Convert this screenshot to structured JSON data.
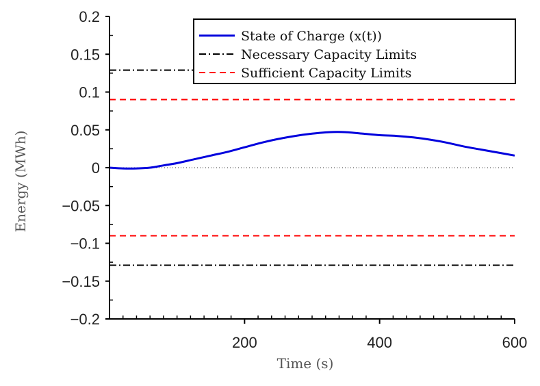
{
  "chart_data": {
    "type": "line",
    "title": "",
    "xlabel": "Time (s)",
    "ylabel": "Energy (MWh)",
    "xlim": [
      0,
      600
    ],
    "ylim": [
      -0.2,
      0.2
    ],
    "x_ticks": [
      200,
      400,
      600
    ],
    "x_tick_labels": [
      "200",
      "400",
      "600"
    ],
    "y_ticks": [
      0.2,
      0.15,
      0.1,
      0.05,
      0,
      -0.05,
      -0.1,
      -0.15,
      -0.2
    ],
    "y_tick_labels": [
      "0.2",
      "0.15",
      "0.1",
      "0.05",
      "0",
      "−0.05",
      "−0.1",
      "−0.15",
      "−0.2"
    ],
    "grid": false,
    "legend_position": "top-right",
    "zero_reference_line": true,
    "series": [
      {
        "name": "State of Charge (x(t))",
        "color": "#0000dd",
        "style": "solid",
        "x": [
          0,
          20,
          40,
          60,
          80,
          100,
          125,
          150,
          175,
          200,
          225,
          250,
          275,
          300,
          325,
          350,
          375,
          400,
          425,
          450,
          475,
          500,
          525,
          550,
          575,
          600
        ],
        "y": [
          0.0,
          -0.001,
          -0.001,
          0.0,
          0.003,
          0.006,
          0.011,
          0.016,
          0.021,
          0.027,
          0.033,
          0.038,
          0.042,
          0.045,
          0.047,
          0.047,
          0.045,
          0.043,
          0.042,
          0.04,
          0.037,
          0.033,
          0.028,
          0.024,
          0.02,
          0.016
        ]
      },
      {
        "name": "Necessary Capacity Limits",
        "color": "#000000",
        "style": "dashdot",
        "levels": [
          0.129,
          -0.129
        ]
      },
      {
        "name": "Sufficient Capacity Limits",
        "color": "#ff0000",
        "style": "dashed",
        "levels": [
          0.09,
          -0.09
        ]
      }
    ]
  }
}
